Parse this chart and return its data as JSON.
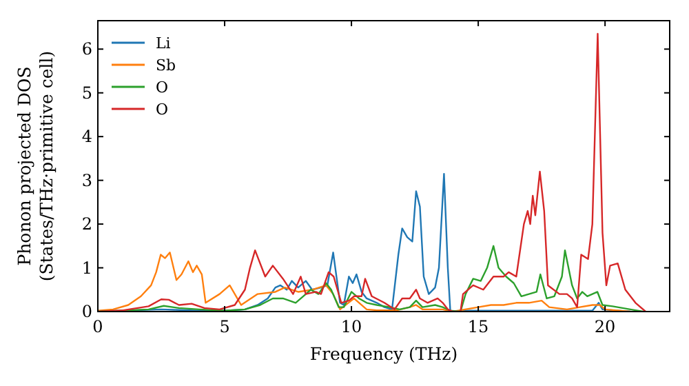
{
  "chart_data": {
    "type": "line",
    "xlabel": "Frequency (THz)",
    "ylabel": "Phonon projected DOS\n(States/THz·primitive cell)",
    "xlim": [
      0,
      22.55
    ],
    "ylim": [
      0,
      6.65
    ],
    "xticks": [
      0,
      5,
      10,
      15,
      20
    ],
    "yticks": [
      0,
      1,
      2,
      3,
      4,
      5,
      6
    ],
    "legend": "top left",
    "grid": false,
    "series": [
      {
        "name": "Li",
        "color": "#1f77b4",
        "x": [
          0,
          2.5,
          3,
          4,
          5,
          5.8,
          6.3,
          6.7,
          7.0,
          7.2,
          7.45,
          7.65,
          7.9,
          8.2,
          8.45,
          8.8,
          9.05,
          9.28,
          9.55,
          9.7,
          9.9,
          10.05,
          10.2,
          10.4,
          10.6,
          11.0,
          11.3,
          11.6,
          11.85,
          12.0,
          12.2,
          12.4,
          12.55,
          12.7,
          12.85,
          13.05,
          13.3,
          13.45,
          13.65,
          13.8,
          13.9,
          14.5,
          19.5,
          19.75,
          19.9,
          20.5,
          21
        ],
        "values": [
          0,
          0.05,
          0.04,
          0.02,
          0.02,
          0.05,
          0.15,
          0.3,
          0.55,
          0.6,
          0.5,
          0.7,
          0.55,
          0.7,
          0.5,
          0.55,
          0.6,
          1.35,
          0.2,
          0.15,
          0.8,
          0.65,
          0.85,
          0.45,
          0.3,
          0.2,
          0.1,
          0.05,
          1.3,
          1.9,
          1.7,
          1.6,
          2.75,
          2.4,
          0.8,
          0.4,
          0.55,
          1.0,
          3.15,
          1.0,
          0,
          0.02,
          0.02,
          0.2,
          0.05,
          0.02,
          0
        ]
      },
      {
        "name": "Sb",
        "color": "#ff7f0e",
        "x": [
          0,
          0.6,
          1.2,
          1.7,
          2.1,
          2.3,
          2.48,
          2.65,
          2.84,
          3.1,
          3.3,
          3.57,
          3.75,
          3.9,
          4.1,
          4.25,
          4.8,
          5.2,
          5.65,
          6.3,
          7.0,
          7.37,
          7.9,
          8.46,
          9.0,
          9.28,
          9.55,
          10.1,
          10.6,
          11.0,
          11.8,
          12.3,
          12.55,
          12.8,
          13.6,
          14.0,
          15.0,
          15.5,
          16.0,
          16.5,
          17.0,
          17.5,
          17.8,
          18.5,
          19.0,
          19.5,
          19.8,
          20.0,
          21.0
        ],
        "values": [
          0.02,
          0.05,
          0.15,
          0.35,
          0.6,
          0.9,
          1.3,
          1.22,
          1.35,
          0.72,
          0.85,
          1.15,
          0.9,
          1.05,
          0.85,
          0.2,
          0.4,
          0.6,
          0.15,
          0.4,
          0.45,
          0.55,
          0.45,
          0.5,
          0.6,
          0.4,
          0.05,
          0.3,
          0.05,
          0.03,
          0.03,
          0.1,
          0.15,
          0.05,
          0.05,
          0,
          0.1,
          0.15,
          0.15,
          0.2,
          0.2,
          0.25,
          0.1,
          0.05,
          0.1,
          0.15,
          0.15,
          0.05,
          0
        ]
      },
      {
        "name": "O",
        "color": "#2ca02c",
        "x": [
          0,
          2,
          2.6,
          3.2,
          4,
          5,
          5.8,
          6.4,
          6.9,
          7.3,
          7.8,
          8.1,
          8.4,
          8.7,
          9.0,
          9.2,
          9.5,
          9.7,
          10.0,
          10.3,
          10.6,
          11.0,
          11.5,
          11.9,
          12.3,
          12.55,
          12.8,
          13.3,
          13.6,
          13.9,
          14.3,
          14.5,
          14.8,
          15.1,
          15.35,
          15.6,
          15.8,
          16.1,
          16.4,
          16.7,
          17.0,
          17.3,
          17.45,
          17.7,
          18.0,
          18.3,
          18.42,
          18.7,
          18.9,
          19.1,
          19.3,
          19.5,
          19.7,
          19.9,
          20.3,
          21,
          21.5
        ],
        "values": [
          0,
          0.05,
          0.13,
          0.08,
          0.05,
          0.02,
          0.05,
          0.15,
          0.3,
          0.3,
          0.2,
          0.35,
          0.5,
          0.4,
          0.65,
          0.5,
          0.1,
          0.1,
          0.45,
          0.3,
          0.2,
          0.15,
          0.1,
          0.05,
          0.1,
          0.25,
          0.1,
          0.15,
          0.1,
          0.02,
          0,
          0.4,
          0.75,
          0.7,
          1.0,
          1.5,
          1.0,
          0.8,
          0.65,
          0.35,
          0.4,
          0.45,
          0.85,
          0.3,
          0.35,
          0.8,
          1.4,
          0.6,
          0.3,
          0.45,
          0.35,
          0.4,
          0.45,
          0.15,
          0.12,
          0.05,
          0
        ]
      },
      {
        "name": "O",
        "color": "#d62728",
        "x": [
          0,
          1,
          2,
          2.5,
          2.8,
          3.2,
          3.7,
          4.2,
          4.8,
          5.4,
          5.8,
          6.0,
          6.2,
          6.6,
          6.9,
          7.3,
          7.7,
          8.0,
          8.2,
          8.6,
          8.8,
          9.1,
          9.3,
          9.6,
          9.9,
          10.1,
          10.4,
          10.54,
          10.8,
          11.3,
          11.7,
          12.0,
          12.3,
          12.55,
          12.7,
          13.0,
          13.4,
          13.6,
          13.8,
          14.0,
          14.3,
          14.4,
          14.8,
          15.2,
          15.6,
          16.0,
          16.2,
          16.5,
          16.8,
          16.95,
          17.05,
          17.15,
          17.25,
          17.43,
          17.6,
          17.75,
          18.2,
          18.5,
          18.7,
          18.9,
          19.06,
          19.33,
          19.5,
          19.71,
          19.9,
          20.05,
          20.2,
          20.5,
          20.8,
          21.2,
          21.6
        ],
        "values": [
          0,
          0.03,
          0.12,
          0.28,
          0.27,
          0.15,
          0.18,
          0.08,
          0.05,
          0.15,
          0.5,
          1.0,
          1.4,
          0.8,
          1.05,
          0.75,
          0.4,
          0.8,
          0.4,
          0.45,
          0.4,
          0.9,
          0.8,
          0.2,
          0.25,
          0.35,
          0.35,
          0.75,
          0.35,
          0.2,
          0.05,
          0.3,
          0.3,
          0.5,
          0.3,
          0.2,
          0.3,
          0.2,
          0.05,
          0,
          0,
          0.4,
          0.6,
          0.5,
          0.8,
          0.8,
          0.9,
          0.8,
          2.0,
          2.3,
          2.0,
          2.65,
          2.2,
          3.2,
          2.3,
          0.6,
          0.4,
          0.4,
          0.3,
          0.1,
          1.3,
          1.2,
          2.0,
          6.35,
          1.8,
          0.6,
          1.05,
          1.1,
          0.5,
          0.2,
          0
        ]
      }
    ]
  }
}
